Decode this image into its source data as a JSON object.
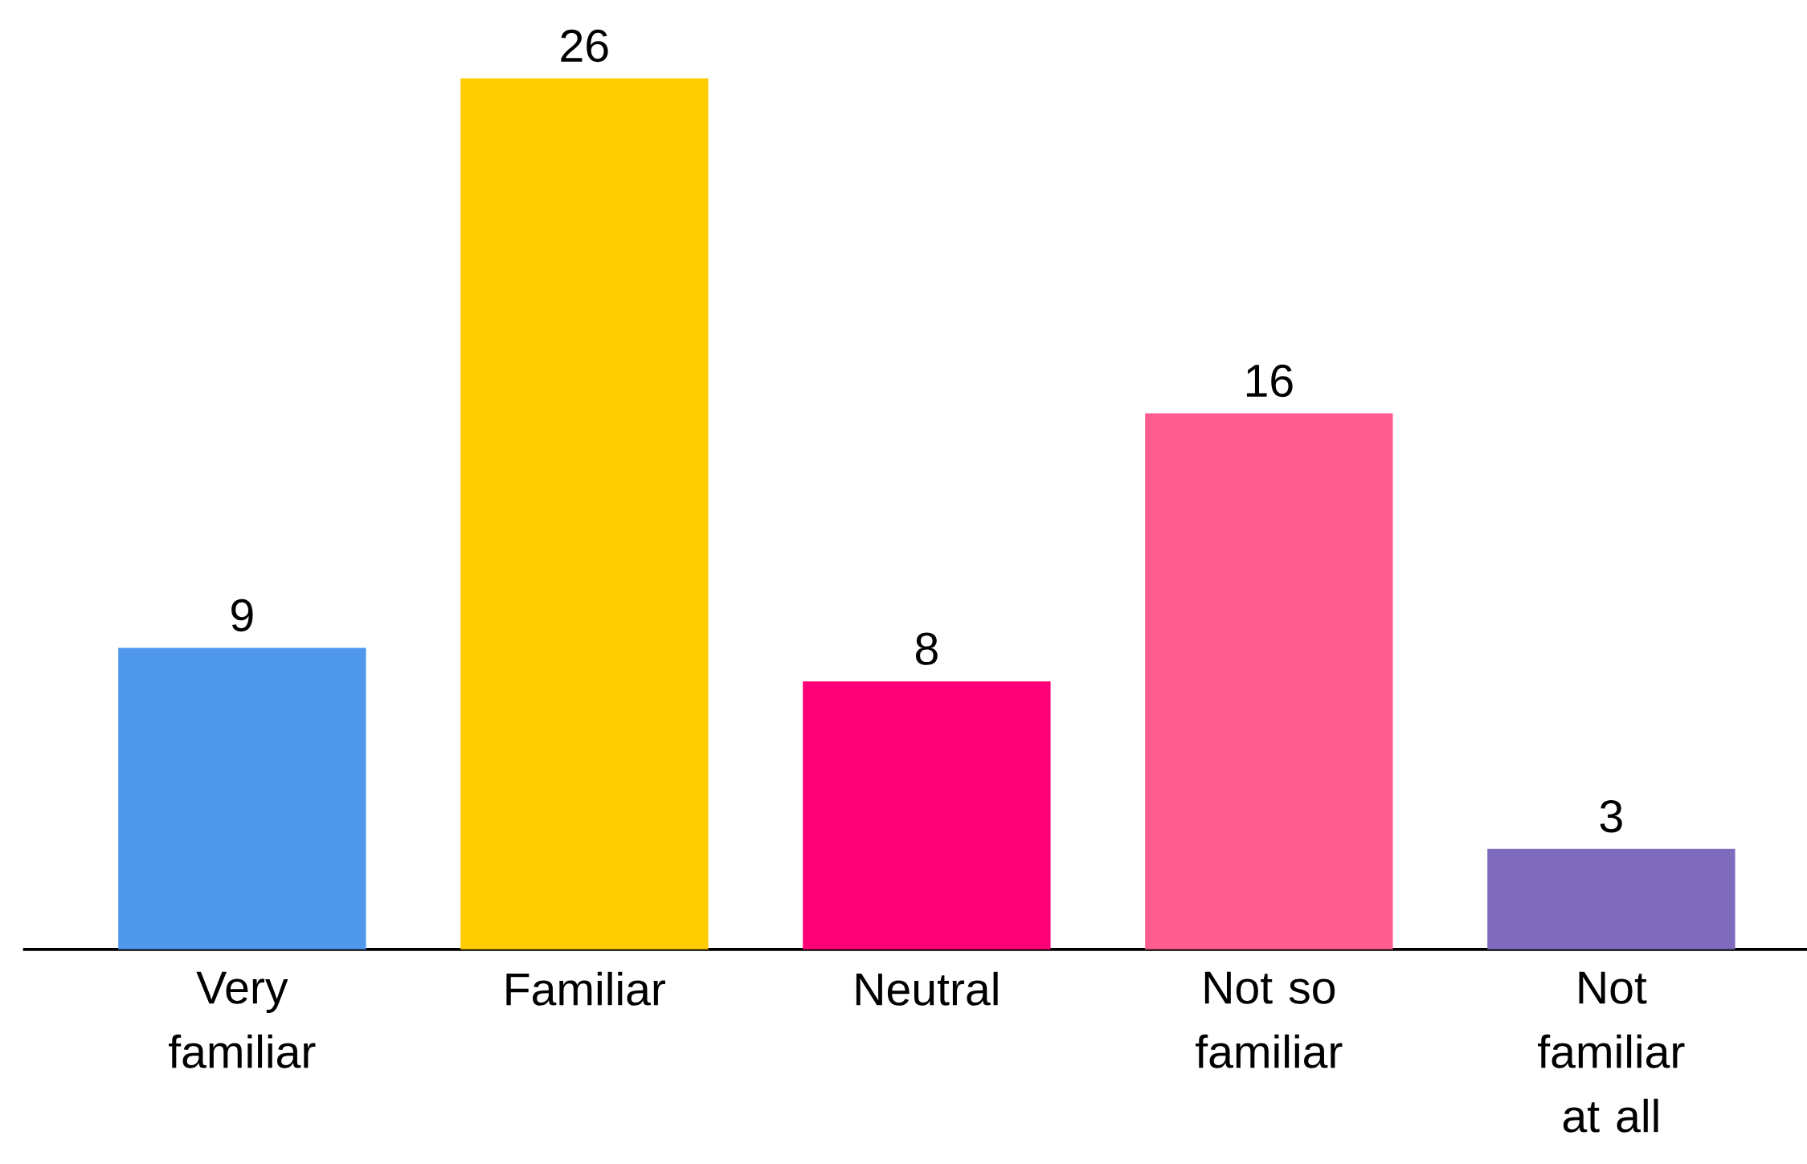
{
  "chart_data": {
    "type": "bar",
    "categories": [
      "Very familiar",
      "Familiar",
      "Neutral",
      "Not so familiar",
      "Not familiar at all"
    ],
    "values": [
      9,
      26,
      8,
      16,
      3
    ],
    "colors": [
      "#4f98eb",
      "#ffcc00",
      "#ff0077",
      "#ff5c8f",
      "#7e6bbd"
    ],
    "data_labels": true
  }
}
